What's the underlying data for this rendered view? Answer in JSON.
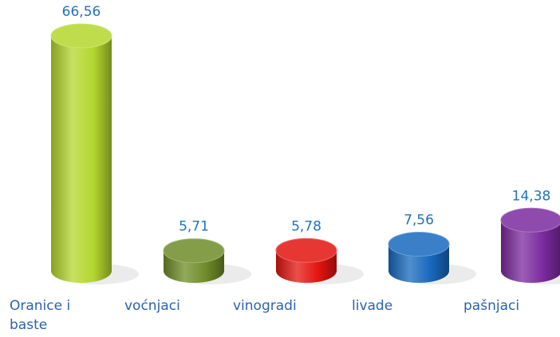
{
  "chart_data": {
    "type": "bar",
    "categories": [
      "Oranice i baste",
      "voćnjaci",
      "vinogradi",
      "livade",
      "pašnjaci"
    ],
    "values": [
      66.56,
      5.71,
      5.78,
      7.56,
      14.38
    ],
    "value_labels": [
      "66,56",
      "5,71",
      "5,78",
      "7,56",
      "14,38"
    ],
    "colors": [
      "#b4d62e",
      "#6e8c28",
      "#e3140f",
      "#1768bd",
      "#7a2a9e"
    ]
  }
}
